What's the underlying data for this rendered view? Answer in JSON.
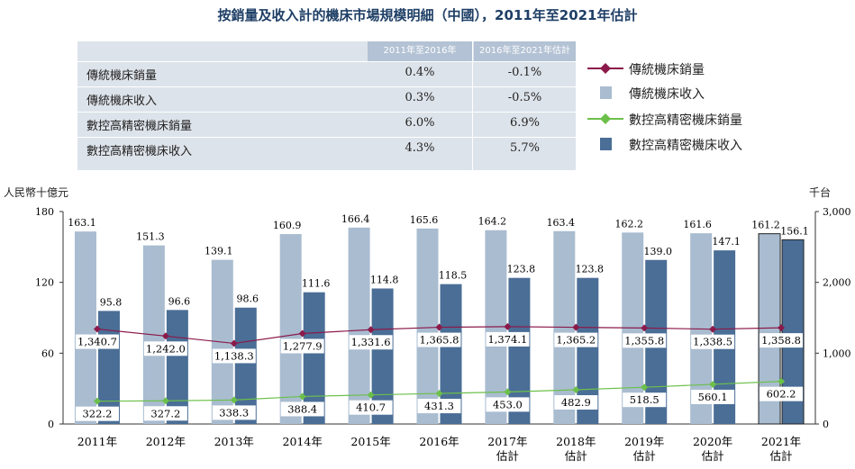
{
  "title": "按銷量及收入計的機床市場規模明細（中國），2011年至2021年估計",
  "cagr_table": {
    "headers": [
      "2011年至2016年",
      "2016年至2021年估計"
    ],
    "rows": [
      {
        "label": "傳統機床銷量",
        "v1": "0.4%",
        "v2": "-0.1%"
      },
      {
        "label": "傳統機床收入",
        "v1": "0.3%",
        "v2": "-0.5%"
      },
      {
        "label": "數控高精密機床銷量",
        "v1": "6.0%",
        "v2": "6.9%"
      },
      {
        "label": "數控高精密機床收入",
        "v1": "4.3%",
        "v2": "5.7%"
      }
    ]
  },
  "legend": {
    "items": [
      {
        "label": "傳統機床銷量",
        "kind": "line",
        "color": "#8b1a4a"
      },
      {
        "label": "傳統機床收入",
        "kind": "bar",
        "color": "#a9bcd0"
      },
      {
        "label": "數控高精密機床銷量",
        "kind": "line",
        "color": "#6cc04a"
      },
      {
        "label": "數控高精密機床收入",
        "kind": "bar",
        "color": "#4a6e96"
      }
    ]
  },
  "chart_data": {
    "type": "bar",
    "categories": [
      "2011年",
      "2012年",
      "2013年",
      "2014年",
      "2015年",
      "2016年",
      "2017年\n估計",
      "2018年\n估計",
      "2019年\n估計",
      "2020年\n估計",
      "2021年\n估計"
    ],
    "left_axis_label": "人民幣十億元",
    "right_axis_label": "千台",
    "left_ticks": [
      "0",
      "60",
      "120",
      "180"
    ],
    "right_ticks": [
      "0",
      "1,000",
      "2,000",
      "3,000"
    ],
    "ylim_left": [
      0,
      180
    ],
    "ylim_right": [
      0,
      3000
    ],
    "series": [
      {
        "name": "傳統機床收入",
        "axis": "left",
        "kind": "bar",
        "color": "#a9bcd0",
        "values": [
          163.1,
          151.3,
          139.1,
          160.9,
          166.4,
          165.6,
          164.2,
          163.4,
          162.2,
          161.6,
          161.2
        ],
        "labels": [
          "163.1",
          "151.3",
          "139.1",
          "160.9",
          "166.4",
          "165.6",
          "164.2",
          "163.4",
          "162.2",
          "161.6",
          "161.2"
        ]
      },
      {
        "name": "數控高精密機床收入",
        "axis": "left",
        "kind": "bar",
        "color": "#4a6e96",
        "values": [
          95.8,
          96.6,
          98.6,
          111.6,
          114.8,
          118.5,
          123.8,
          123.8,
          139.0,
          147.1,
          156.1
        ],
        "labels": [
          "95.8",
          "96.6",
          "98.6",
          "111.6",
          "114.8",
          "118.5",
          "123.8",
          "123.8",
          "139.0",
          "147.1",
          "156.1"
        ]
      },
      {
        "name": "傳統機床銷量",
        "axis": "right",
        "kind": "line",
        "color": "#8b1a4a",
        "values": [
          1340.7,
          1242.0,
          1138.3,
          1277.9,
          1331.6,
          1365.8,
          1374.1,
          1365.2,
          1355.8,
          1338.5,
          1358.8
        ],
        "labels": [
          "1,340.7",
          "1,242.0",
          "1,138.3",
          "1,277.9",
          "1,331.6",
          "1,365.8",
          "1,374.1",
          "1,365.2",
          "1,355.8",
          "1,338.5",
          "1,358.8"
        ]
      },
      {
        "name": "數控高精密機床銷量",
        "axis": "right",
        "kind": "line",
        "color": "#6cc04a",
        "values": [
          322.2,
          327.2,
          338.3,
          388.4,
          410.7,
          431.3,
          453.0,
          482.9,
          518.5,
          560.1,
          602.2
        ],
        "labels": [
          "322.2",
          "327.2",
          "338.3",
          "388.4",
          "410.7",
          "431.3",
          "453.0",
          "482.9",
          "518.5",
          "560.1",
          "602.2"
        ]
      }
    ]
  }
}
